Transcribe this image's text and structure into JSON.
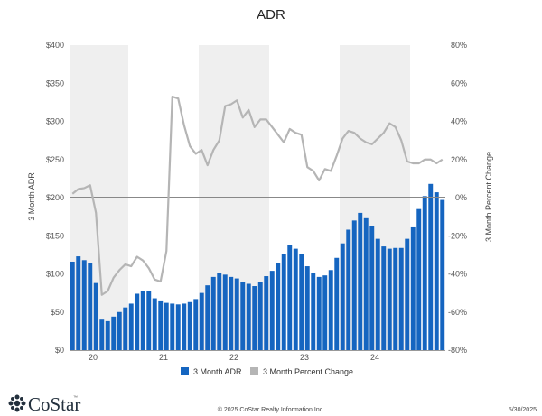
{
  "chart_data": {
    "type": "bar",
    "title": "ADR",
    "ylabel": "3 Month ADR",
    "y2label": "3 Month Percent Change",
    "ylim": [
      0,
      400
    ],
    "y2lim": [
      -80,
      80
    ],
    "yticks": [
      "$0",
      "$50",
      "$100",
      "$150",
      "$200",
      "$250",
      "$300",
      "$350",
      "$400"
    ],
    "y2ticks": [
      "-80%",
      "-60%",
      "-40%",
      "-20%",
      "0%",
      "20%",
      "40%",
      "60%",
      "80%"
    ],
    "xticks": [
      "20",
      "21",
      "22",
      "23",
      "24"
    ],
    "grid": "alternating year bands",
    "legend_position": "bottom",
    "series": [
      {
        "name": "3 Month ADR",
        "type": "bar",
        "color": "#1565c0",
        "values": [
          116,
          123,
          118,
          114,
          88,
          40,
          38,
          44,
          50,
          56,
          61,
          74,
          77,
          77,
          68,
          64,
          62,
          61,
          60,
          61,
          63,
          67,
          75,
          85,
          96,
          101,
          99,
          96,
          94,
          89,
          87,
          84,
          89,
          97,
          104,
          114,
          126,
          138,
          133,
          126,
          110,
          101,
          96,
          98,
          105,
          121,
          140,
          158,
          170,
          180,
          173,
          163,
          146,
          136,
          133,
          134,
          134,
          146,
          161,
          185,
          202,
          218,
          207,
          197
        ]
      },
      {
        "name": "3 Month Percent Change",
        "type": "line",
        "color": "#b5b5b5",
        "values": [
          2,
          4.5,
          5,
          6.5,
          -8,
          -51,
          -49,
          -42,
          -38,
          -35,
          -36,
          -31,
          -33,
          -37,
          -43,
          -44,
          -28,
          53,
          52,
          38,
          27,
          23,
          25,
          17,
          25,
          30,
          48,
          49,
          51,
          42,
          46,
          37,
          41,
          41,
          37,
          33,
          29,
          36,
          34,
          33,
          16,
          14,
          9,
          15,
          14,
          22,
          31,
          35,
          34,
          31,
          29,
          28,
          31,
          34,
          39,
          37,
          30,
          19,
          18,
          18,
          20,
          20,
          18,
          20
        ]
      }
    ]
  },
  "footer": {
    "brand": "CoStar",
    "trademark": "™",
    "copyright": "© 2025 CoStar Realty Information Inc.",
    "date": "5/30/2025"
  }
}
